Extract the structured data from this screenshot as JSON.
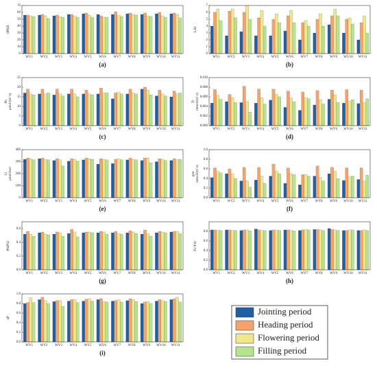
{
  "legend": [
    {
      "name": "Jointing period",
      "color": "#1f5fa6"
    },
    {
      "name": "Heading period",
      "color": "#f4a46a"
    },
    {
      "name": "Flowering period",
      "color": "#f0e68c"
    },
    {
      "name": "Filling period",
      "color": "#b5e48c"
    }
  ],
  "chart_data": [
    {
      "type": "bar",
      "label": "(a)",
      "ylabel": [
        "SPAD"
      ],
      "categories": [
        "WV1",
        "WV2",
        "WV3",
        "WV4",
        "WV5",
        "WV6",
        "WV7",
        "WV8",
        "WV9",
        "WV10",
        "WV11"
      ],
      "ylim": [
        0,
        70
      ],
      "yticks": [
        0,
        10,
        20,
        30,
        40,
        50,
        60,
        70
      ],
      "series": [
        {
          "values": [
            56,
            56,
            55,
            57,
            58,
            57,
            57,
            58,
            57,
            58,
            58
          ]
        },
        {
          "values": [
            56,
            57,
            56,
            57,
            59,
            55,
            61,
            59,
            59,
            60,
            59
          ]
        },
        {
          "values": [
            55,
            55,
            54,
            55,
            56,
            53,
            56,
            57,
            55,
            55,
            57
          ]
        },
        {
          "values": [
            54,
            51,
            53,
            53,
            53,
            53,
            54,
            56,
            54,
            53,
            52
          ]
        }
      ]
    },
    {
      "type": "bar",
      "label": "(b)",
      "ylabel": [
        "LAI"
      ],
      "categories": [
        "WV1",
        "WV2",
        "WV3",
        "WV4",
        "WV5",
        "WV6",
        "WV7",
        "WV8",
        "WV9",
        "WV10",
        "WV11"
      ],
      "ylim": [
        0,
        7
      ],
      "yticks": [
        0,
        1,
        2,
        3,
        4,
        5,
        6,
        7
      ],
      "series": [
        {
          "values": [
            4.0,
            2.6,
            3.2,
            2.6,
            2.6,
            3.3,
            2.0,
            3.0,
            4.2,
            3.0,
            2.0
          ]
        },
        {
          "values": [
            6.0,
            6.2,
            6.0,
            5.2,
            5.0,
            5.5,
            4.5,
            5.0,
            5.5,
            5.0,
            4.5
          ]
        },
        {
          "values": [
            6.5,
            6.5,
            7.0,
            6.3,
            5.8,
            6.3,
            4.8,
            5.8,
            6.5,
            5.2,
            5.5
          ]
        },
        {
          "values": [
            4.8,
            5.2,
            5.0,
            4.0,
            4.5,
            4.5,
            4.0,
            4.0,
            5.5,
            4.3,
            3.0
          ]
        }
      ]
    },
    {
      "type": "bar",
      "label": "(c)",
      "ylabel": [
        "Pn",
        "μmol/(m²·s)"
      ],
      "categories": [
        "WV1",
        "WV2",
        "WV3",
        "WV4",
        "WV5",
        "WV6",
        "WV7",
        "WV8",
        "WV9",
        "WV10",
        "WV11"
      ],
      "ylim": [
        0,
        25
      ],
      "yticks": [
        0,
        5,
        10,
        15,
        20,
        25
      ],
      "series": [
        {
          "values": [
            17,
            16.5,
            16,
            16.5,
            16.5,
            16.5,
            14,
            16.5,
            19,
            15.5,
            15
          ]
        },
        {
          "values": [
            19,
            19,
            19,
            19,
            18.5,
            19.5,
            17,
            19,
            20,
            18.5,
            18
          ]
        },
        {
          "values": [
            16.5,
            16.5,
            16.5,
            16.5,
            16.5,
            17,
            17.5,
            17,
            18.5,
            16.5,
            16.5
          ]
        },
        {
          "values": [
            16,
            17,
            15.5,
            15,
            16,
            17,
            16.5,
            16.5,
            16,
            15.5,
            17
          ]
        }
      ]
    },
    {
      "type": "bar",
      "label": "(d)",
      "ylabel": [
        "Tr",
        "mmol/(m²·s)"
      ],
      "categories": [
        "WV1",
        "WV2",
        "WV3",
        "WV4",
        "WV5",
        "WV6",
        "WV7",
        "WV8",
        "WV9",
        "WV10",
        "WV11"
      ],
      "ylim": [
        0,
        0.01
      ],
      "yticks": [
        {
          "value": 0,
          "label": "0.000"
        },
        {
          "value": 0.002,
          "label": "0.002"
        },
        {
          "value": 0.004,
          "label": "0.004"
        },
        {
          "value": 0.006,
          "label": "0.006"
        },
        {
          "value": 0.008,
          "label": "0.008"
        },
        {
          "value": 0.01,
          "label": "0.010"
        }
      ],
      "series": [
        {
          "values": [
            0.0047,
            0.005,
            0.0048,
            0.0047,
            0.0053,
            0.0038,
            0.0032,
            0.0043,
            0.0055,
            0.0047,
            0.0046
          ]
        },
        {
          "values": [
            0.0075,
            0.0065,
            0.0082,
            0.0076,
            0.0076,
            0.0072,
            0.007,
            0.0073,
            0.0074,
            0.0075,
            0.0074
          ]
        },
        {
          "values": [
            0.0063,
            0.0058,
            0.005,
            0.0058,
            0.0065,
            0.0058,
            0.0058,
            0.0054,
            0.0064,
            0.0051,
            0.0048
          ]
        },
        {
          "values": [
            0.0055,
            0.0048,
            0.0028,
            0.0045,
            0.006,
            0.005,
            0.0056,
            0.0045,
            0.0048,
            0.0054,
            0.0056
          ]
        }
      ]
    },
    {
      "type": "bar",
      "label": "(e)",
      "ylabel": [
        "Ci",
        "μmol/mol"
      ],
      "categories": [
        "WV1",
        "WV2",
        "WV3",
        "WV4",
        "WV5",
        "WV6",
        "WV7",
        "WV8",
        "WV9",
        "WV10",
        "WV11"
      ],
      "ylim": [
        0,
        400
      ],
      "yticks": [
        0,
        100,
        200,
        300,
        400
      ],
      "series": [
        {
          "values": [
            320,
            325,
            310,
            305,
            315,
            280,
            285,
            315,
            310,
            300,
            310
          ]
        },
        {
          "values": [
            330,
            330,
            325,
            325,
            330,
            325,
            320,
            330,
            330,
            325,
            325
          ]
        },
        {
          "values": [
            325,
            320,
            315,
            320,
            325,
            320,
            325,
            320,
            330,
            320,
            315
          ]
        },
        {
          "values": [
            315,
            315,
            265,
            305,
            320,
            315,
            315,
            315,
            290,
            310,
            320
          ]
        }
      ]
    },
    {
      "type": "bar",
      "label": "(f)",
      "ylabel": [
        "gsw",
        "mmol/(m²·s)"
      ],
      "categories": [
        "WV1",
        "WV2",
        "WV3",
        "WV4",
        "WV5",
        "WV6",
        "WV7",
        "WV8",
        "WV9",
        "WV10",
        "WV11"
      ],
      "ylim": [
        0,
        1
      ],
      "yticks": [
        {
          "value": 0,
          "label": "0.0"
        },
        0.2,
        0.4,
        0.6,
        0.8,
        {
          "value": 1,
          "label": "1.0"
        }
      ],
      "series": [
        {
          "values": [
            0.42,
            0.5,
            0.35,
            0.37,
            0.45,
            0.3,
            0.27,
            0.45,
            0.5,
            0.36,
            0.38
          ]
        },
        {
          "values": [
            0.62,
            0.6,
            0.63,
            0.63,
            0.7,
            0.62,
            0.48,
            0.66,
            0.63,
            0.62,
            0.62
          ]
        },
        {
          "values": [
            0.55,
            0.5,
            0.35,
            0.45,
            0.55,
            0.5,
            0.48,
            0.42,
            0.55,
            0.43,
            0.35
          ]
        },
        {
          "values": [
            0.52,
            0.4,
            0.22,
            0.3,
            0.5,
            0.48,
            0.45,
            0.35,
            0.4,
            0.45,
            0.47
          ]
        }
      ]
    },
    {
      "type": "bar",
      "label": "(g)",
      "ylabel": [
        "PhiPS2"
      ],
      "categories": [
        "WV1",
        "WV2",
        "WV3",
        "WV4",
        "WV5",
        "WV6",
        "WV7",
        "WV8",
        "WV9",
        "WV10",
        "WV11"
      ],
      "ylim": [
        0,
        0.7
      ],
      "yticks": [
        {
          "value": 0,
          "label": "0.0"
        },
        0.2,
        0.4,
        0.6
      ],
      "series": [
        {
          "values": [
            0.52,
            0.54,
            0.52,
            0.53,
            0.54,
            0.54,
            0.54,
            0.54,
            0.52,
            0.54,
            0.55
          ]
        },
        {
          "values": [
            0.56,
            0.55,
            0.55,
            0.59,
            0.55,
            0.56,
            0.56,
            0.57,
            0.58,
            0.56,
            0.56
          ]
        },
        {
          "values": [
            0.52,
            0.52,
            0.54,
            0.55,
            0.55,
            0.55,
            0.53,
            0.55,
            0.53,
            0.55,
            0.56
          ]
        },
        {
          "values": [
            0.49,
            0.51,
            0.49,
            0.48,
            0.54,
            0.52,
            0.52,
            0.53,
            0.49,
            0.54,
            0.53
          ]
        }
      ]
    },
    {
      "type": "bar",
      "label": "(h)",
      "ylabel": [
        "Fv'/Fm'"
      ],
      "categories": [
        "WV1",
        "WV2",
        "WV3",
        "WV4",
        "WV5",
        "WV6",
        "WV7",
        "WV8",
        "WV9",
        "WV10",
        "WV11"
      ],
      "ylim": [
        0,
        1
      ],
      "yticks": [
        {
          "value": 0,
          "label": "0.0"
        },
        0.2,
        0.4,
        0.6,
        0.8
      ],
      "series": [
        {
          "values": [
            0.83,
            0.83,
            0.82,
            0.85,
            0.82,
            0.83,
            0.82,
            0.84,
            0.86,
            0.82,
            0.82
          ]
        },
        {
          "values": [
            0.83,
            0.83,
            0.83,
            0.83,
            0.83,
            0.83,
            0.83,
            0.84,
            0.84,
            0.82,
            0.82
          ]
        },
        {
          "values": [
            0.82,
            0.82,
            0.83,
            0.82,
            0.83,
            0.82,
            0.84,
            0.83,
            0.83,
            0.83,
            0.83
          ]
        },
        {
          "values": [
            0.82,
            0.82,
            0.81,
            0.82,
            0.82,
            0.81,
            0.83,
            0.82,
            0.82,
            0.83,
            0.82
          ]
        }
      ]
    },
    {
      "type": "bar",
      "label": "(i)",
      "ylabel": [
        "qP"
      ],
      "categories": [
        "WV1",
        "WV2",
        "WV3",
        "WV4",
        "WV5",
        "WV6",
        "WV7",
        "WV8",
        "WV9",
        "WV10",
        "WV11"
      ],
      "ylim": [
        0,
        1
      ],
      "yticks": [
        {
          "value": 0,
          "label": "0.0"
        },
        0.2,
        0.4,
        0.6,
        0.8,
        {
          "value": 1,
          "label": "1.0"
        }
      ],
      "series": [
        {
          "values": [
            0.8,
            0.88,
            0.84,
            0.85,
            0.85,
            0.88,
            0.85,
            0.86,
            0.8,
            0.85,
            0.88
          ]
        },
        {
          "values": [
            0.82,
            0.93,
            0.86,
            0.88,
            0.89,
            0.9,
            0.86,
            0.9,
            0.83,
            0.88,
            0.9
          ]
        },
        {
          "values": [
            0.92,
            0.86,
            0.86,
            0.88,
            0.9,
            0.84,
            0.88,
            0.88,
            0.84,
            0.86,
            0.93
          ]
        },
        {
          "values": [
            0.82,
            0.8,
            0.74,
            0.82,
            0.85,
            0.83,
            0.83,
            0.84,
            0.8,
            0.84,
            0.83
          ]
        }
      ]
    }
  ]
}
